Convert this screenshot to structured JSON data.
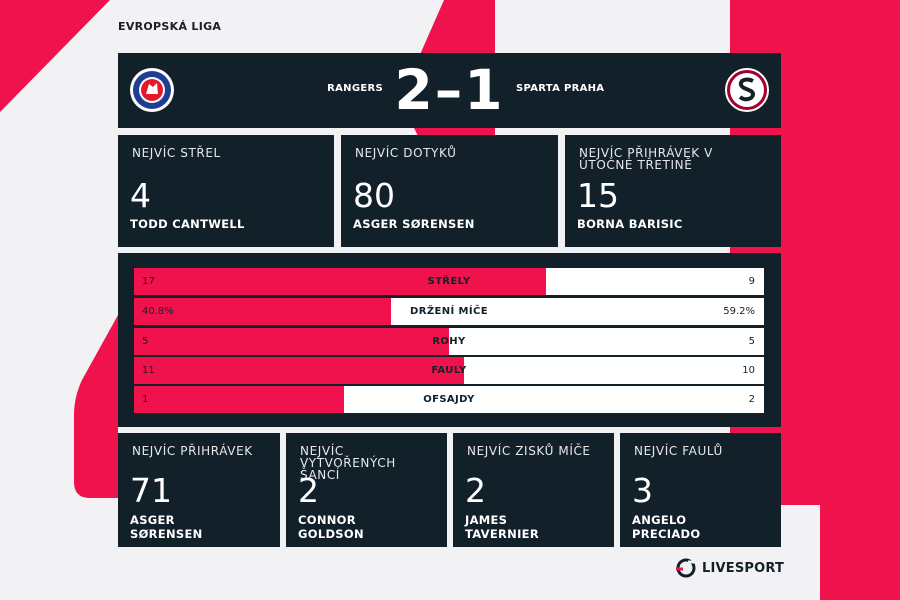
{
  "competition": "EVROPSKÁ LIGA",
  "match": {
    "home_team": "RANGERS",
    "away_team": "SPARTA PRAHA",
    "home_score": "2",
    "separator": "–",
    "away_score": "1",
    "home_crest_icon": "rangers-crest-icon",
    "away_crest_icon": "sparta-praha-crest-icon"
  },
  "top_stats": [
    {
      "label": "NEJVÍC STŘEL",
      "value": "4",
      "player": "TODD CANTWELL"
    },
    {
      "label": "NEJVÍC DOTYKŮ",
      "value": "80",
      "player": "ASGER SØRENSEN"
    },
    {
      "label": "NEJVÍC PŘIHRÁVEK V ÚTOČNÉ TŘETINĚ",
      "value": "15",
      "player": "BORNA BARISIC"
    }
  ],
  "comparison": [
    {
      "label": "STŘELY",
      "home": "17",
      "away": "9",
      "home_share": 0.654
    },
    {
      "label": "DRŽENÍ MÍČE",
      "home": "40.8%",
      "away": "59.2%",
      "home_share": 0.408
    },
    {
      "label": "ROHY",
      "home": "5",
      "away": "5",
      "home_share": 0.5
    },
    {
      "label": "FAULY",
      "home": "11",
      "away": "10",
      "home_share": 0.524
    },
    {
      "label": "OFSAJDY",
      "home": "1",
      "away": "2",
      "home_share": 0.333
    }
  ],
  "bottom_stats": [
    {
      "label": "NEJVÍC PŘIHRÁVEK",
      "value": "71",
      "player": "ASGER SØRENSEN"
    },
    {
      "label": "NEJVÍC VYTVOŘENÝCH ŠANCÍ",
      "value": "2",
      "player": "CONNOR GOLDSON"
    },
    {
      "label": "NEJVÍC ZISKŮ MÍČE",
      "value": "2",
      "player": "JAMES TAVERNIER"
    },
    {
      "label": "NEJVÍC FAULŮ",
      "value": "3",
      "player": "ANGELO PRECIADO"
    }
  ],
  "branding": {
    "name": "LIVESPORT",
    "logo_icon": "livesport-logo-icon"
  },
  "colors": {
    "accent": "#f0124c",
    "panel": "#122029",
    "background": "#f2f2f4",
    "bar_empty": "#ffffff"
  }
}
